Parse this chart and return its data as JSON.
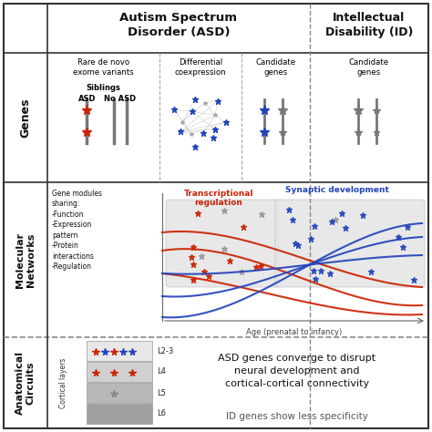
{
  "bg_color": "#ffffff",
  "red_color": "#cc2200",
  "blue_color": "#2244bb",
  "gray_color": "#888888",
  "light_gray": "#dddddd",
  "network_text": "Gene modules\nsharing:\n-Function\n-Expression\npattern\n-Protein\ninteractions\n-Regulation",
  "network_xlabel": "Age (prenatal to infancy)",
  "circuits_layers": [
    "L2-3",
    "L4",
    "L5",
    "L6"
  ],
  "circuits_text1": "ASD genes converge to disrupt\nneural development and\ncortical-cortical connectivity",
  "circuits_text2": "ID genes show less specificity",
  "transcriptional_label": "Transcriptional\nregulation",
  "synaptic_label": "Synaptic development",
  "header_asd": "Autism Spectrum\nDisorder (ASD)",
  "header_id": "Intellectual\nDisability (ID)"
}
